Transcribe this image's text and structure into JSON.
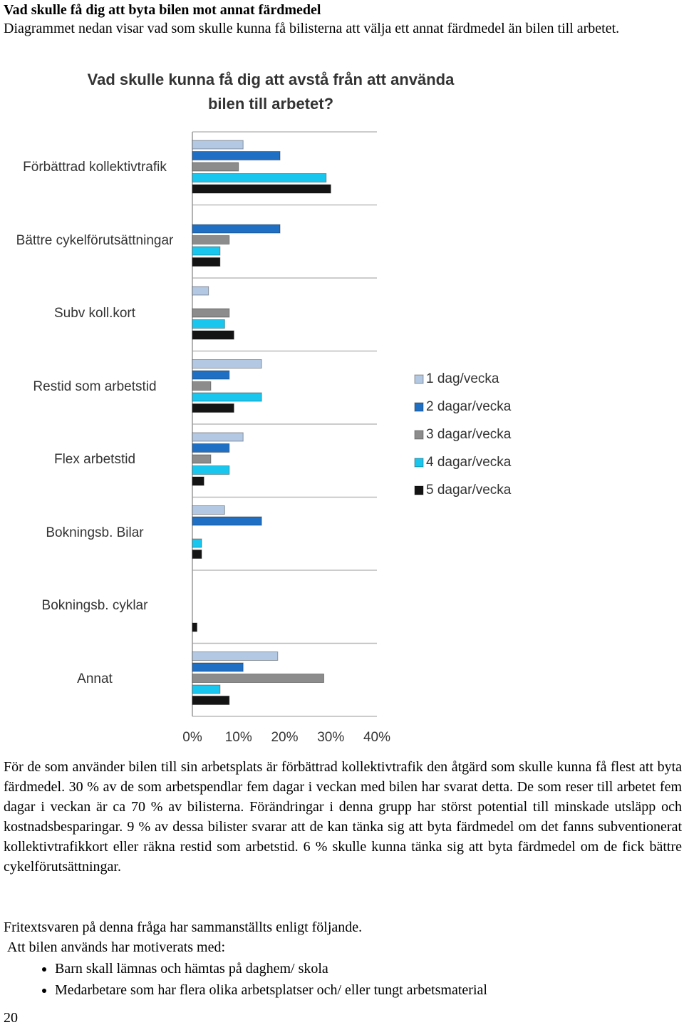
{
  "header": {
    "title": "Vad skulle få dig att byta bilen mot annat färdmedel",
    "intro": "Diagrammet nedan visar vad som skulle kunna få bilisterna att välja ett annat färdmedel än bilen till arbetet."
  },
  "chart_data": {
    "type": "bar",
    "orientation": "horizontal",
    "title": "Vad skulle kunna få dig att avstå från att använda bilen till arbetet?",
    "categories": [
      "Förbättrad kollektivtrafik",
      "Bättre cykelförutsättningar",
      "Subv koll.kort",
      "Restid som arbetstid",
      "Flex arbetstid",
      "Bokningsb. Bilar",
      "Bokningsb. cyklar",
      "Annat"
    ],
    "series": [
      {
        "name": "1 dag/vecka",
        "color": "#b3c8e2",
        "values": [
          11,
          0,
          3.5,
          15,
          11,
          7,
          0,
          18.5
        ]
      },
      {
        "name": "2 dagar/vecka",
        "color": "#1f6fc5",
        "values": [
          19,
          19,
          0,
          8,
          8,
          15,
          0,
          11
        ]
      },
      {
        "name": "3 dagar/vecka",
        "color": "#8c8c8c",
        "values": [
          10,
          8,
          8,
          4,
          4,
          0,
          0,
          28.5
        ]
      },
      {
        "name": "4 dagar/vecka",
        "color": "#19c6ee",
        "values": [
          29,
          6,
          7,
          15,
          8,
          2,
          0,
          6
        ]
      },
      {
        "name": "5 dagar/vecka",
        "color": "#141414",
        "values": [
          30,
          6,
          9,
          9,
          2.5,
          2,
          1,
          8
        ]
      }
    ],
    "xlim": [
      0,
      40
    ],
    "xticks": [
      {
        "value": 0,
        "label": "0%"
      },
      {
        "value": 10,
        "label": "10%"
      },
      {
        "value": 20,
        "label": "20%"
      },
      {
        "value": 30,
        "label": "30%"
      },
      {
        "value": 40,
        "label": "40%"
      }
    ],
    "grid": true,
    "legend": "right"
  },
  "body": {
    "paragraphs": [
      "För de som använder bilen till sin arbetsplats är förbättrad kollektivtrafik den åtgärd som skulle kunna få flest att byta färdmedel. 30 % av de som arbetspendlar fem dagar i veckan med bilen har svarat detta. De som reser till arbetet fem dagar i veckan är ca 70 % av bilisterna. Förändringar i denna grupp har störst potential till minskade utsläpp och kostnadsbesparingar. 9 % av dessa bilister svarar att de kan tänka sig att byta färdmedel om det fanns subventionerat kollektivtrafikkort eller räkna restid som arbetstid. 6 % skulle kunna tänka sig att byta färdmedel om de fick bättre cykelförutsättningar.",
      "Fritextsvaren på denna fråga har sammanställts enligt följande.",
      "Att bilen används har motiverats med:"
    ],
    "list": [
      "Barn skall lämnas och hämtas på daghem/ skola",
      "Medarbetare som har flera olika arbetsplatser och/ eller tungt arbetsmaterial"
    ]
  },
  "footer": {
    "page_number": "20"
  }
}
